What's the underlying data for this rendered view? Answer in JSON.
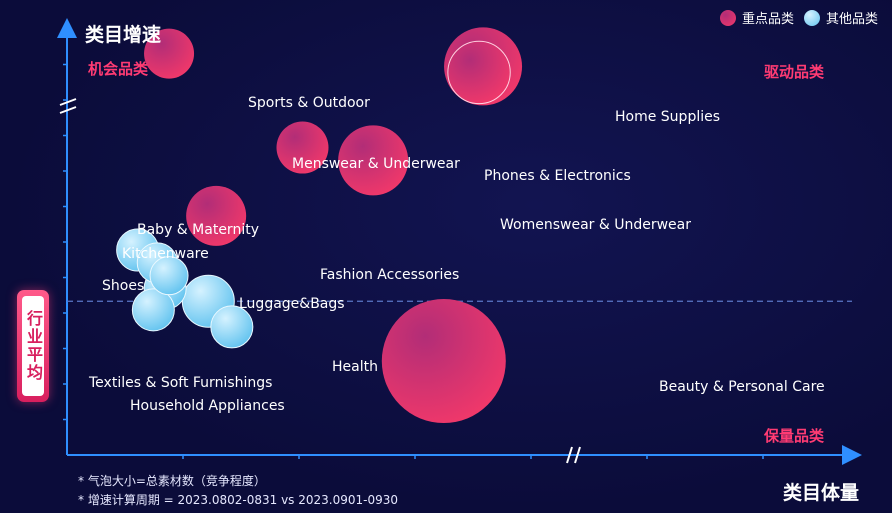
{
  "chart_data": {
    "type": "scatter",
    "subtype": "bubble",
    "x_axis_title": "类目体量",
    "y_axis_title": "类目增速",
    "axis_breaks": true,
    "grid": false,
    "legend_position": "top-right",
    "legend": [
      {
        "name": "重点品类",
        "color": "#e8356d"
      },
      {
        "name": "其他品类",
        "color": "#7ad3f5"
      }
    ],
    "quadrant_labels": {
      "top_left": "机会品类",
      "top_right": "驱动品类",
      "bottom_right": "保量品类"
    },
    "average_line_label": "行业平均",
    "average_line_y": 3.6,
    "xlim": [
      0,
      10
    ],
    "ylim": [
      0,
      10
    ],
    "series": [
      {
        "name": "重点品类",
        "color": "#e8356d",
        "points": [
          {
            "label": "Sports & Outdoor",
            "x": 1.3,
            "y": 9.4,
            "size": 25
          },
          {
            "label": "Home Supplies",
            "x": 5.3,
            "y": 9.1,
            "size": 39
          },
          {
            "label": "Menswear & Underwear",
            "x": 3.0,
            "y": 7.2,
            "size": 26
          },
          {
            "label": "Womenswear & Underwear",
            "x": 3.9,
            "y": 6.9,
            "size": 35
          },
          {
            "label": "Fashion Accessories",
            "x": 1.9,
            "y": 5.6,
            "size": 30
          },
          {
            "label": "Beauty & Personal Care",
            "x": 4.8,
            "y": 2.2,
            "size": 62
          }
        ]
      },
      {
        "name": "其他品类",
        "color": "#7ad3f5",
        "points": [
          {
            "label": "Baby & Maternity",
            "x": 1.15,
            "y": 4.5,
            "size": 20
          },
          {
            "label": "Kitchenware",
            "x": 1.3,
            "y": 4.2,
            "size": 19
          },
          {
            "label": "Shoes",
            "x": 0.9,
            "y": 4.8,
            "size": 21
          },
          {
            "label": "Luggage&Bags",
            "x": 1.25,
            "y": 3.9,
            "size": 21
          },
          {
            "label": "Textiles & Soft Furnishings",
            "x": 1.1,
            "y": 3.4,
            "size": 21
          },
          {
            "label": "Household Appliances",
            "x": 1.8,
            "y": 3.6,
            "size": 26
          },
          {
            "label": "Health",
            "x": 2.1,
            "y": 3.0,
            "size": 21
          }
        ]
      }
    ],
    "notes": [
      "* 气泡大小=总素材数（竞争程度）",
      "* 增速计算周期 = 2023.0802-0831 vs 2023.0901-0930"
    ]
  }
}
